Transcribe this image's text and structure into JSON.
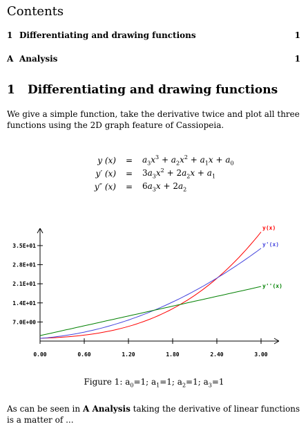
{
  "toc": {
    "title": "Contents",
    "entries": [
      {
        "num": "1",
        "label": "Differentiating and drawing functions",
        "page": "1"
      },
      {
        "num": "A",
        "label": "Analysis",
        "page": "1"
      }
    ]
  },
  "section": {
    "num": "1",
    "title": "Differentiating and drawing functions"
  },
  "intro": "We give a simple function, take the derivative twice and plot all three functions using the 2D graph feature of Cassiopeia.",
  "equations": [
    {
      "lhs": "y (x)",
      "rel": "="
    },
    {
      "lhs": "y′ (x)",
      "rel": "="
    },
    {
      "lhs": "y″ (x)",
      "rel": "="
    }
  ],
  "caption": {
    "prefix": "Figure 1:",
    "text": "a0=1; a1=1; a2=1; a3=1"
  },
  "outro_before": "As can be seen in ",
  "outro_ref": "A Analysis",
  "outro_after": " taking the derivative of linear functions is a matter of ...",
  "chart_data": {
    "type": "line",
    "xlim": [
      0,
      3.2
    ],
    "ylim": [
      0,
      40
    ],
    "x_ticks": [
      0,
      0.6,
      1.2,
      1.8,
      2.4,
      3.0
    ],
    "x_tick_labels": [
      "0.00",
      "0.60",
      "1.20",
      "1.80",
      "2.40",
      "3.00"
    ],
    "y_ticks": [
      7.0,
      14.0,
      21.0,
      28.0,
      35.0
    ],
    "y_tick_labels": [
      "7.0E+00",
      "1.4E+01",
      "2.1E+01",
      "2.8E+01",
      "3.5E+01"
    ],
    "series": [
      {
        "name": "y(x)",
        "color": "#ff0000",
        "coeffs": [
          1,
          1,
          1,
          1
        ]
      },
      {
        "name": "y'(x)",
        "color": "#4444dd",
        "coeffs": [
          1,
          2,
          3
        ]
      },
      {
        "name": "y''(x)",
        "color": "#008000",
        "coeffs": [
          2,
          6
        ]
      }
    ]
  }
}
